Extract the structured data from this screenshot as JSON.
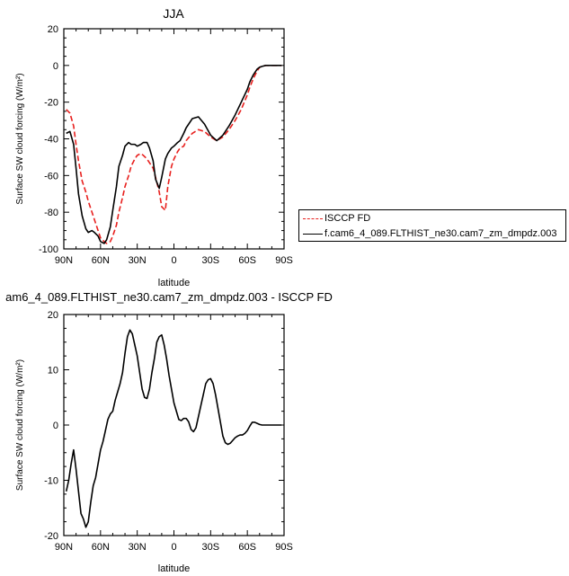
{
  "chart_data": [
    {
      "type": "line",
      "title": "JJA",
      "xlabel": "latitude",
      "ylabel": "Surface SW cloud forcing (W/m²)",
      "xlim": [
        -90,
        90
      ],
      "ylim": [
        -100,
        20
      ],
      "xticks": [
        -90,
        -60,
        -30,
        0,
        30,
        60,
        90
      ],
      "xticklabels": [
        "90N",
        "60N",
        "30N",
        "0",
        "30S",
        "60S",
        "90S"
      ],
      "yticks": [
        -100,
        -80,
        -60,
        -40,
        -20,
        0,
        20
      ],
      "yticklabels": [
        "-100",
        "-80",
        "-60",
        "-40",
        "-20",
        "0",
        "20"
      ],
      "legend": "right",
      "series": [
        {
          "name": "ISCCP FD",
          "color": "#e8201e",
          "dash": "dashed",
          "x": [
            -88,
            -85,
            -82,
            -80,
            -78,
            -75,
            -72,
            -70,
            -67,
            -63,
            -60,
            -57,
            -55,
            -52,
            -50,
            -47,
            -45,
            -42,
            -40,
            -37,
            -35,
            -32,
            -30,
            -27,
            -25,
            -22,
            -20,
            -17,
            -15,
            -12,
            -10,
            -7,
            -5,
            -2,
            0,
            3,
            5,
            8,
            10,
            15,
            20,
            25,
            30,
            35,
            40,
            45,
            50,
            55,
            60,
            62,
            65,
            68,
            70,
            72,
            75,
            80,
            85,
            88
          ],
          "y": [
            -24,
            -26,
            -33,
            -43,
            -52,
            -63,
            -69,
            -74,
            -80,
            -88,
            -94,
            -96,
            -97,
            -96,
            -93,
            -87,
            -80,
            -72,
            -66,
            -60,
            -55,
            -51,
            -49,
            -48,
            -49,
            -51,
            -53,
            -56,
            -61,
            -69,
            -77,
            -79,
            -66,
            -55,
            -51,
            -47,
            -45,
            -44,
            -41,
            -37,
            -35,
            -36,
            -39,
            -41,
            -39,
            -35,
            -30,
            -24,
            -16,
            -12,
            -7,
            -3,
            -1,
            -0.5,
            0,
            0,
            0,
            0
          ]
        },
        {
          "name": "f.cam6_4_089.FLTHIST_ne30.cam7_zm_dmpdz.003",
          "color": "#000000",
          "dash": "solid",
          "x": [
            -88,
            -85,
            -82,
            -80,
            -78,
            -75,
            -72,
            -70,
            -67,
            -65,
            -62,
            -60,
            -57,
            -55,
            -52,
            -50,
            -47,
            -45,
            -42,
            -40,
            -37,
            -35,
            -32,
            -30,
            -27,
            -25,
            -22,
            -20,
            -17,
            -15,
            -12,
            -10,
            -7,
            -5,
            -2,
            0,
            3,
            5,
            8,
            10,
            15,
            20,
            25,
            30,
            35,
            40,
            45,
            50,
            55,
            60,
            62,
            65,
            68,
            70,
            72,
            75,
            80,
            85,
            88
          ],
          "y": [
            -37,
            -36,
            -43,
            -56,
            -70,
            -82,
            -89,
            -91,
            -90,
            -91,
            -93,
            -96,
            -97,
            -95,
            -88,
            -79,
            -66,
            -55,
            -49,
            -44,
            -42,
            -43,
            -43,
            -44,
            -43,
            -42,
            -42,
            -45,
            -52,
            -62,
            -67,
            -61,
            -51,
            -48,
            -45,
            -44,
            -42,
            -41,
            -37,
            -34,
            -29,
            -28,
            -32,
            -38,
            -41,
            -38,
            -33,
            -27,
            -20,
            -13,
            -9,
            -5,
            -2,
            -1,
            -0.5,
            0,
            0,
            0,
            0
          ]
        }
      ]
    },
    {
      "type": "line",
      "title": "am6_4_089.FLTHIST_ne30.cam7_zm_dmpdz.003 - ISCCP FD",
      "xlabel": "latitude",
      "ylabel": "Surface SW cloud forcing (W/m²)",
      "xlim": [
        -90,
        90
      ],
      "ylim": [
        -20,
        20
      ],
      "xticks": [
        -90,
        -60,
        -30,
        0,
        30,
        60,
        90
      ],
      "xticklabels": [
        "90N",
        "60N",
        "30N",
        "0",
        "30S",
        "60S",
        "90S"
      ],
      "yticks": [
        -20,
        -10,
        0,
        10,
        20
      ],
      "yticklabels": [
        "-20",
        "-10",
        "0",
        "10",
        "20"
      ],
      "series": [
        {
          "color": "#000000",
          "dash": "solid",
          "x": [
            -88,
            -86,
            -84,
            -82,
            -80,
            -78,
            -76,
            -74,
            -72,
            -70,
            -68,
            -66,
            -64,
            -62,
            -60,
            -58,
            -56,
            -54,
            -52,
            -50,
            -48,
            -46,
            -44,
            -42,
            -40,
            -38,
            -36,
            -34,
            -32,
            -30,
            -28,
            -26,
            -24,
            -22,
            -20,
            -18,
            -16,
            -14,
            -12,
            -10,
            -8,
            -6,
            -4,
            -2,
            0,
            2,
            4,
            6,
            8,
            10,
            12,
            14,
            16,
            18,
            20,
            22,
            24,
            26,
            28,
            30,
            32,
            34,
            36,
            38,
            40,
            42,
            44,
            46,
            48,
            50,
            52,
            54,
            56,
            58,
            60,
            62,
            64,
            66,
            68,
            70,
            72,
            74,
            76,
            78,
            80,
            82,
            84,
            86,
            88
          ],
          "y": [
            -12,
            -10,
            -7,
            -4.5,
            -8,
            -12,
            -16,
            -17,
            -18.5,
            -17.5,
            -14,
            -11,
            -9.5,
            -7,
            -4.5,
            -3,
            -1,
            1,
            2,
            2.5,
            4.5,
            6,
            7.5,
            9.5,
            13,
            16,
            17.2,
            16.5,
            14.5,
            12.5,
            9.5,
            6.5,
            5,
            4.8,
            6.5,
            9.5,
            12,
            15,
            16,
            16.3,
            14.5,
            12,
            9,
            6.5,
            4,
            2.5,
            1,
            0.8,
            1.2,
            1.2,
            0.6,
            -0.8,
            -1.2,
            -0.5,
            1.5,
            3.5,
            5.5,
            7.5,
            8.2,
            8.4,
            7.5,
            5.5,
            3,
            0.5,
            -2,
            -3.2,
            -3.5,
            -3.3,
            -2.8,
            -2.3,
            -2,
            -1.8,
            -1.8,
            -1.5,
            -1,
            -0.2,
            0.5,
            0.5,
            0.3,
            0.1,
            0,
            0,
            0,
            0,
            0,
            0,
            0,
            0,
            0
          ]
        }
      ]
    }
  ]
}
